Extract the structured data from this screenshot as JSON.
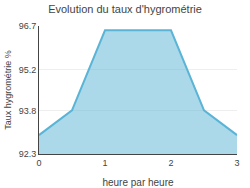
{
  "chart_data": {
    "type": "area",
    "title": "Evolution du taux d'hygrométrie",
    "xlabel": "heure par heure",
    "ylabel": "Taux hygrométrie %",
    "x": [
      0,
      0.5,
      1,
      2,
      2.5,
      3
    ],
    "values": [
      92.95,
      93.8,
      96.55,
      96.55,
      93.8,
      92.95
    ],
    "color": "#5ab4d6",
    "xlim": [
      0,
      3
    ],
    "ylim": [
      92.3,
      96.7
    ],
    "xticks": [
      0,
      1,
      2,
      3
    ],
    "yticks": [
      92.3,
      93.8,
      95.2,
      96.7
    ],
    "grid": true
  }
}
